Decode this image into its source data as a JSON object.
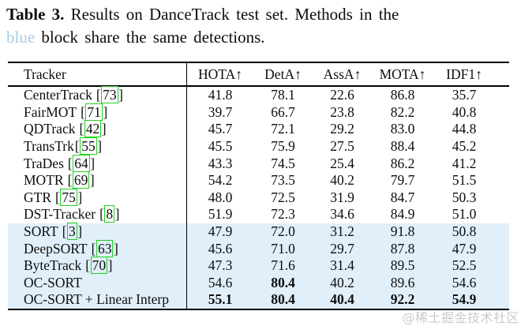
{
  "caption": {
    "label": "Table 3.",
    "line1_rest": "Results on DanceTrack test set. Methods in the",
    "blue_word": "blue",
    "line2_rest": "block share the same detections.",
    "blue_word_color": "#a3cce8"
  },
  "table": {
    "columns": [
      "Tracker",
      "HOTA↑",
      "DetA↑",
      "AssA↑",
      "MOTA↑",
      "IDF1↑"
    ],
    "cite_open": "[",
    "cite_close": "]",
    "highlight_color": "#e1effa",
    "citation_box_color": "#1ed11e",
    "rows": [
      {
        "name": "CenterTrack",
        "cite": "73",
        "values": [
          "41.8",
          "78.1",
          "22.6",
          "86.8",
          "35.7"
        ]
      },
      {
        "name": "FairMOT",
        "cite": "71",
        "values": [
          "39.7",
          "66.7",
          "23.8",
          "82.2",
          "40.8"
        ]
      },
      {
        "name": "QDTrack",
        "cite": "42",
        "values": [
          "45.7",
          "72.1",
          "29.2",
          "83.0",
          "44.8"
        ]
      },
      {
        "name": "TransTrk",
        "cite": "55",
        "values": [
          "45.5",
          "75.9",
          "27.5",
          "88.4",
          "45.2"
        ]
      },
      {
        "name": "TraDes",
        "cite": "64",
        "values": [
          "43.3",
          "74.5",
          "25.4",
          "86.2",
          "41.2"
        ]
      },
      {
        "name": "MOTR",
        "cite": "69",
        "values": [
          "54.2",
          "73.5",
          "40.2",
          "79.7",
          "51.5"
        ]
      },
      {
        "name": "GTR",
        "cite": "75",
        "values": [
          "48.0",
          "72.5",
          "31.9",
          "84.7",
          "50.3"
        ]
      },
      {
        "name": "DST-Tracker",
        "cite": "8",
        "values": [
          "51.9",
          "72.3",
          "34.6",
          "84.9",
          "51.0"
        ]
      },
      {
        "name": "SORT",
        "cite": "3",
        "values": [
          "47.9",
          "72.0",
          "31.2",
          "91.8",
          "50.8"
        ],
        "highlighted": true
      },
      {
        "name": "DeepSORT",
        "cite": "63",
        "values": [
          "45.6",
          "71.0",
          "29.7",
          "87.8",
          "47.9"
        ],
        "highlighted": true
      },
      {
        "name": "ByteTrack",
        "cite": "70",
        "values": [
          "47.3",
          "71.6",
          "31.4",
          "89.5",
          "52.5"
        ],
        "highlighted": true
      },
      {
        "name": "OC-SORT",
        "values": [
          "54.6",
          "80.4",
          "40.2",
          "89.6",
          "54.6"
        ],
        "highlighted": true,
        "bold_value_indices": [
          1
        ]
      },
      {
        "name": "OC-SORT + Linear Interp",
        "values": [
          "55.1",
          "80.4",
          "40.4",
          "92.2",
          "54.9"
        ],
        "highlighted": true,
        "bold_value_indices": [
          0,
          1,
          2,
          3,
          4
        ]
      }
    ]
  },
  "watermark": {
    "text": "@稀土掘金技术社区",
    "color": "#cbcbcb"
  }
}
